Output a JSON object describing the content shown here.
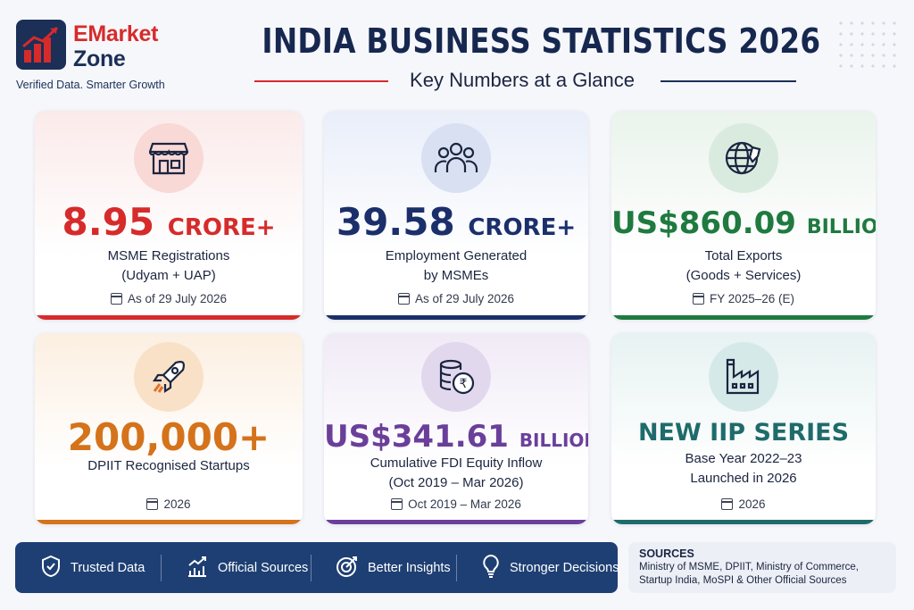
{
  "brand": {
    "name_line1": "EMarket",
    "name_line2": "Zone",
    "tagline": "Verified Data. Smarter Growth"
  },
  "header": {
    "title": "INDIA BUSINESS STATISTICS 2026",
    "subtitle": "Key Numbers at a Glance"
  },
  "cards": [
    {
      "value": "8.95",
      "unit": "CRORE+",
      "label_line1": "MSME Registrations",
      "label_line2": "(Udyam + UAP)",
      "date": "As of 29 July 2026",
      "icon": "storefront-icon",
      "accent": "#d62b2b"
    },
    {
      "value": "39.58",
      "unit": "CRORE+",
      "label_line1": "Employment Generated",
      "label_line2": "by MSMEs",
      "date": "As of 29 July 2026",
      "icon": "people-icon",
      "accent": "#1b2f6b"
    },
    {
      "value": "US$860.09",
      "unit": "BILLION",
      "label_line1": "Total Exports",
      "label_line2": "(Goods + Services)",
      "date": "FY 2025–26 (E)",
      "icon": "globe-icon",
      "accent": "#1f7a3f"
    },
    {
      "value": "200,000+",
      "unit": "",
      "label_line1": "DPIIT Recognised Startups",
      "label_line2": "",
      "date": "2026",
      "icon": "rocket-icon",
      "accent": "#d4731b"
    },
    {
      "value": "US$341.61",
      "unit": "BILLION",
      "label_line1": "Cumulative FDI Equity Inflow",
      "label_line2": "(Oct 2019 – Mar 2026)",
      "date": "Oct 2019 – Mar 2026",
      "icon": "rupee-coins-icon",
      "accent": "#6a3f9a"
    },
    {
      "value": "NEW IIP SERIES",
      "unit": "",
      "label_line1": "Base Year 2022–23",
      "label_line2": "Launched in 2026",
      "date": "2026",
      "icon": "factory-icon",
      "accent": "#1f6b6b"
    }
  ],
  "features": [
    {
      "label": "Trusted Data",
      "icon": "shield-check-icon"
    },
    {
      "label": "Official Sources",
      "icon": "growth-chart-icon"
    },
    {
      "label": "Better Insights",
      "icon": "target-icon"
    },
    {
      "label": "Stronger Decisions",
      "icon": "lightbulb-icon"
    }
  ],
  "sources": {
    "title": "SOURCES",
    "line1": "Ministry of MSME, DPIIT, Ministry of Commerce,",
    "line2": "Startup India, MoSPI & Other Official Sources"
  }
}
